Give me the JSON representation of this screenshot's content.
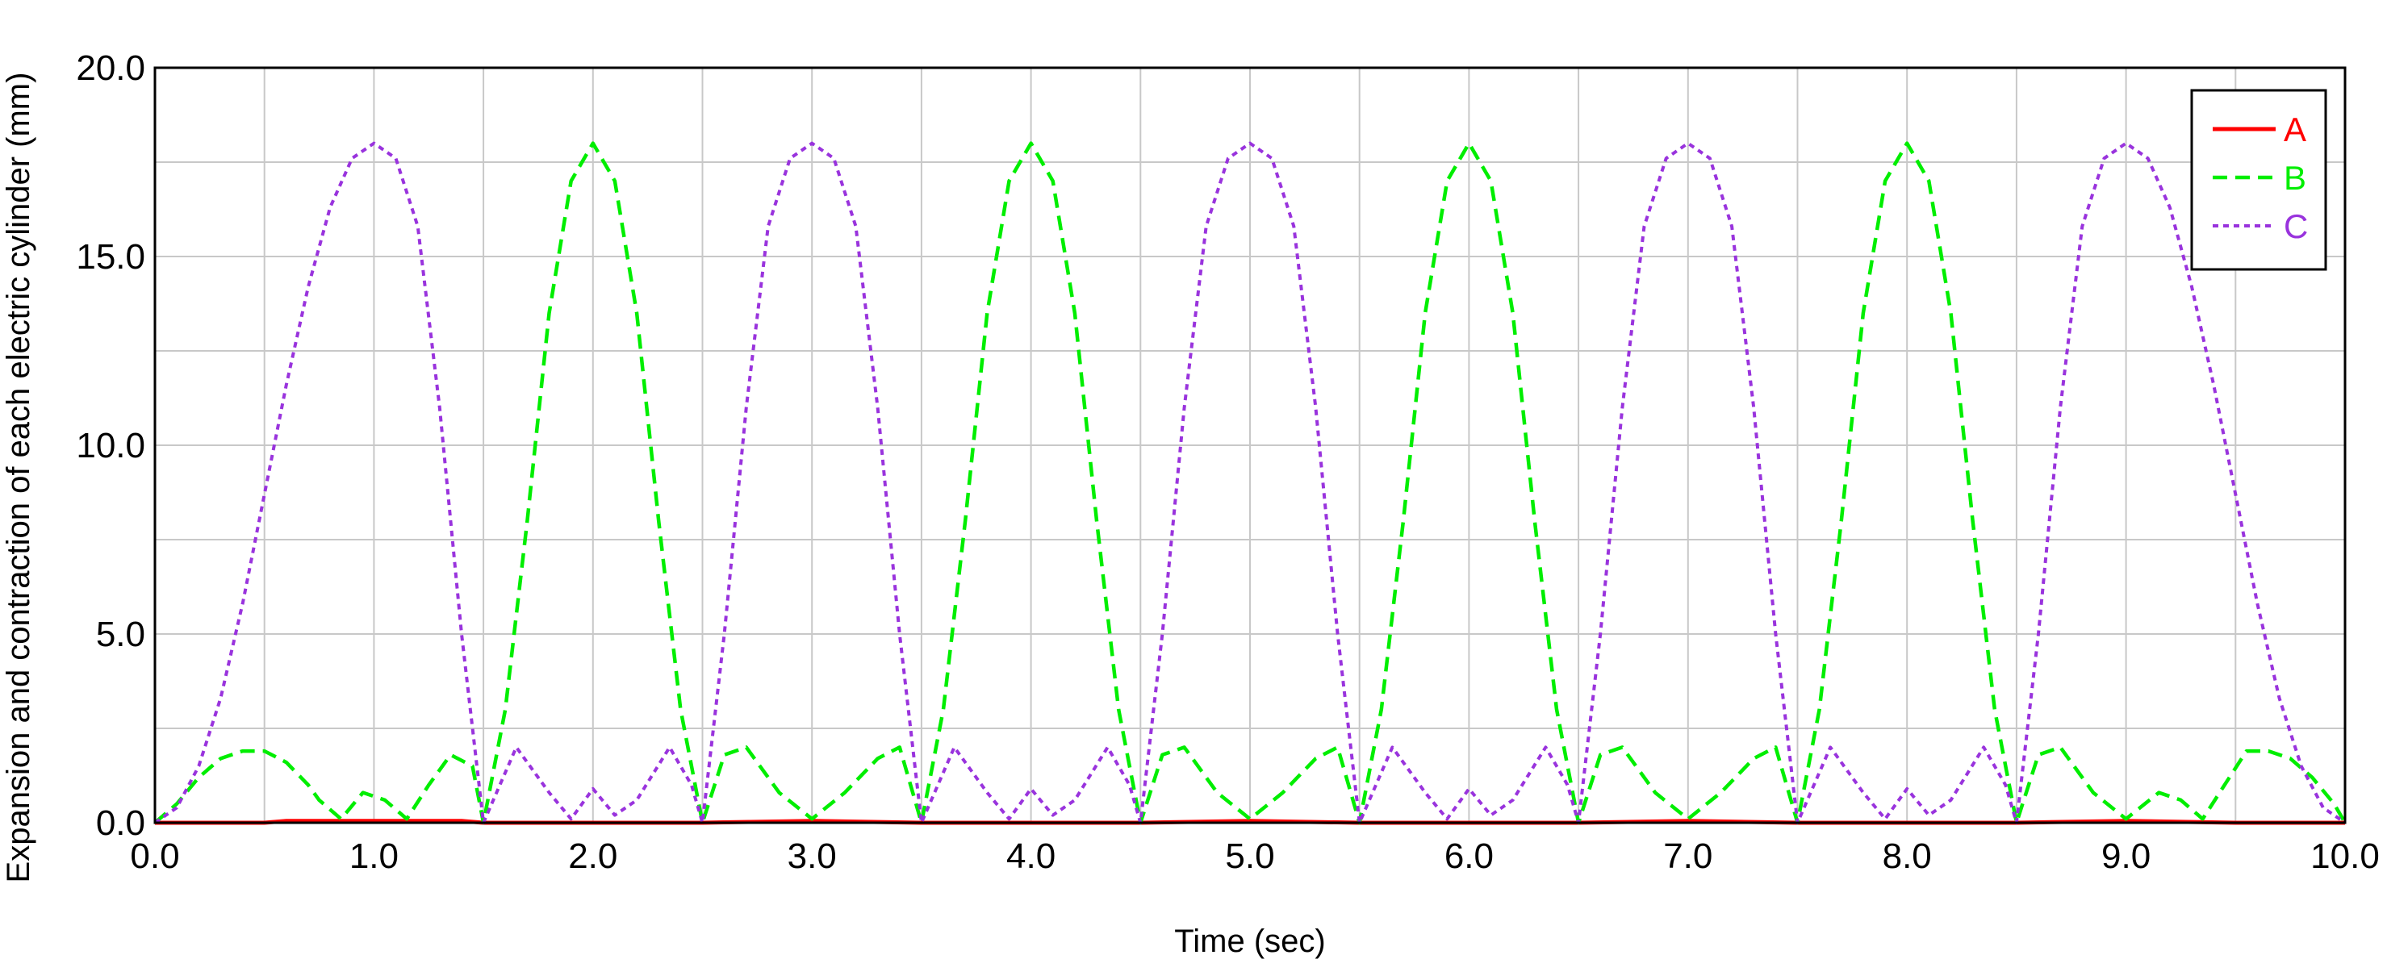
{
  "chart_data": {
    "type": "line",
    "title": "",
    "xlabel": "Time (sec)",
    "ylabel": "Expansion and contraction of each electric cylinder (mm)",
    "xlim": [
      0,
      10
    ],
    "ylim": [
      0,
      20
    ],
    "xticks": [
      "0.0",
      "1.0",
      "2.0",
      "3.0",
      "4.0",
      "5.0",
      "6.0",
      "7.0",
      "8.0",
      "9.0",
      "10.0"
    ],
    "yticks": [
      "0.0",
      "5.0",
      "10.0",
      "15.0",
      "20.0"
    ],
    "grid": true,
    "legend_position": "top-right",
    "series": [
      {
        "name": "A",
        "color": "#ff0000",
        "style": "solid",
        "x": [
          0,
          0.5,
          0.6,
          1.0,
          1.4,
          1.5,
          2.5,
          3.0,
          3.5,
          4.5,
          5.0,
          5.5,
          6.5,
          7.0,
          7.5,
          8.5,
          9.0,
          9.5,
          10.0
        ],
        "y": [
          0,
          0,
          0.05,
          0.05,
          0.05,
          0,
          0,
          0.05,
          0,
          0,
          0.05,
          0,
          0,
          0.05,
          0,
          0,
          0.05,
          0,
          0
        ]
      },
      {
        "name": "B",
        "color": "#00ee00",
        "style": "dashed",
        "x": [
          0,
          0.1,
          0.2,
          0.3,
          0.4,
          0.5,
          0.6,
          0.7,
          0.75,
          0.85,
          0.95,
          1.05,
          1.15,
          1.25,
          1.35,
          1.45,
          1.5,
          1.6,
          1.7,
          1.8,
          1.9,
          2.0,
          2.1,
          2.2,
          2.3,
          2.4,
          2.5,
          2.6,
          2.7,
          2.85,
          3.0,
          3.15,
          3.3,
          3.4,
          3.5,
          3.6,
          3.7,
          3.8,
          3.9,
          4.0,
          4.1,
          4.2,
          4.3,
          4.4,
          4.5,
          4.6,
          4.7,
          4.85,
          5.0,
          5.15,
          5.3,
          5.4,
          5.5,
          5.6,
          5.7,
          5.8,
          5.9,
          6.0,
          6.1,
          6.2,
          6.3,
          6.4,
          6.5,
          6.6,
          6.7,
          6.85,
          7.0,
          7.15,
          7.3,
          7.4,
          7.5,
          7.6,
          7.7,
          7.8,
          7.9,
          8.0,
          8.1,
          8.2,
          8.3,
          8.4,
          8.5,
          8.6,
          8.7,
          8.85,
          9.0,
          9.15,
          9.25,
          9.35,
          9.45,
          9.55,
          9.65,
          9.75,
          9.85,
          9.95,
          10.0
        ],
        "y": [
          0,
          0.5,
          1.2,
          1.7,
          1.9,
          1.9,
          1.6,
          1.0,
          0.6,
          0.1,
          0.8,
          0.6,
          0.1,
          1.0,
          1.8,
          1.5,
          0.0,
          3.0,
          8.0,
          13.5,
          17.0,
          18.0,
          17.0,
          13.5,
          8.0,
          3.0,
          0.0,
          1.8,
          2.0,
          0.8,
          0.1,
          0.8,
          1.7,
          2.0,
          0.0,
          3.0,
          8.0,
          13.5,
          17.0,
          18.0,
          17.0,
          13.5,
          8.0,
          3.0,
          0.0,
          1.8,
          2.0,
          0.8,
          0.1,
          0.8,
          1.7,
          2.0,
          0.0,
          3.0,
          8.0,
          13.5,
          17.0,
          18.0,
          17.0,
          13.5,
          8.0,
          3.0,
          0.0,
          1.8,
          2.0,
          0.8,
          0.1,
          0.8,
          1.7,
          2.0,
          0.0,
          3.0,
          8.0,
          13.5,
          17.0,
          18.0,
          17.0,
          13.5,
          8.0,
          3.0,
          0.0,
          1.8,
          2.0,
          0.8,
          0.1,
          0.8,
          0.6,
          0.1,
          1.0,
          1.9,
          1.9,
          1.7,
          1.2,
          0.5,
          0.0
        ]
      },
      {
        "name": "C",
        "color": "#9933dd",
        "style": "dotted",
        "x": [
          0,
          0.1,
          0.2,
          0.3,
          0.4,
          0.5,
          0.6,
          0.7,
          0.8,
          0.9,
          1.0,
          1.1,
          1.2,
          1.3,
          1.4,
          1.5,
          1.65,
          1.8,
          1.9,
          2.0,
          2.1,
          2.2,
          2.35,
          2.45,
          2.5,
          2.6,
          2.7,
          2.8,
          2.9,
          3.0,
          3.1,
          3.2,
          3.3,
          3.4,
          3.5,
          3.65,
          3.8,
          3.9,
          4.0,
          4.1,
          4.2,
          4.35,
          4.45,
          4.5,
          4.6,
          4.7,
          4.8,
          4.9,
          5.0,
          5.1,
          5.2,
          5.3,
          5.4,
          5.5,
          5.65,
          5.8,
          5.9,
          6.0,
          6.1,
          6.2,
          6.35,
          6.45,
          6.5,
          6.6,
          6.7,
          6.8,
          6.9,
          7.0,
          7.1,
          7.2,
          7.3,
          7.4,
          7.5,
          7.65,
          7.8,
          7.9,
          8.0,
          8.1,
          8.2,
          8.35,
          8.45,
          8.5,
          8.6,
          8.7,
          8.8,
          8.9,
          9.0,
          9.1,
          9.2,
          9.3,
          9.4,
          9.5,
          9.6,
          9.7,
          9.8,
          9.9,
          10.0
        ],
        "y": [
          0,
          0.4,
          1.5,
          3.3,
          5.8,
          8.7,
          11.6,
          14.2,
          16.3,
          17.6,
          18.0,
          17.6,
          15.8,
          11.0,
          5.0,
          0.0,
          2.0,
          0.8,
          0.1,
          0.9,
          0.2,
          0.6,
          2.0,
          1.0,
          0.0,
          5.0,
          11.0,
          15.8,
          17.6,
          18.0,
          17.6,
          15.8,
          11.0,
          5.0,
          0.0,
          2.0,
          0.8,
          0.1,
          0.9,
          0.2,
          0.6,
          2.0,
          1.0,
          0.0,
          5.0,
          11.0,
          15.8,
          17.6,
          18.0,
          17.6,
          15.8,
          11.0,
          5.0,
          0.0,
          2.0,
          0.8,
          0.1,
          0.9,
          0.2,
          0.6,
          2.0,
          1.0,
          0.0,
          5.0,
          11.0,
          15.8,
          17.6,
          18.0,
          17.6,
          15.8,
          11.0,
          5.0,
          0.0,
          2.0,
          0.8,
          0.1,
          0.9,
          0.2,
          0.6,
          2.0,
          1.0,
          0.0,
          5.0,
          11.0,
          15.8,
          17.6,
          18.0,
          17.6,
          16.3,
          14.2,
          11.6,
          8.7,
          5.8,
          3.3,
          1.5,
          0.4,
          0.0
        ]
      }
    ]
  }
}
